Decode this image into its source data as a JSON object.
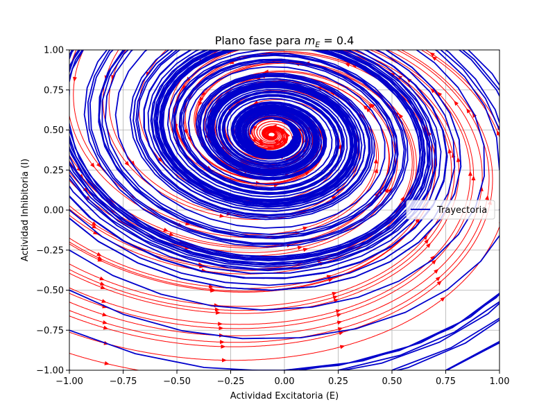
{
  "chart_data": {
    "type": "streamplot",
    "title_prefix": "Plano fase para ",
    "title_math_var": "m",
    "title_math_sub": "E",
    "title_math_rest": " = 0.4",
    "xlabel": "Actividad Excitatoria (E)",
    "ylabel": "Actividad Inhibitoria (I)",
    "xlim": [
      -1.0,
      1.0
    ],
    "ylim": [
      -1.0,
      1.0
    ],
    "x_ticks": [
      "−1.00",
      "−0.75",
      "−0.50",
      "−0.25",
      "0.00",
      "0.25",
      "0.50",
      "0.75",
      "1.00"
    ],
    "y_ticks": [
      "−1.00",
      "−0.75",
      "−0.50",
      "−0.25",
      "0.00",
      "0.25",
      "0.50",
      "0.75",
      "1.00"
    ],
    "grid": true,
    "legend_position": "center-right",
    "series": [
      {
        "name": "Trayectoria",
        "color": "#0000cc",
        "style": "polygonal spiral",
        "center": [
          -0.06,
          0.47
        ]
      },
      {
        "name": "",
        "color": "#ff0000",
        "style": "streamlines with arrows",
        "center": [
          -0.06,
          0.47
        ]
      }
    ]
  }
}
